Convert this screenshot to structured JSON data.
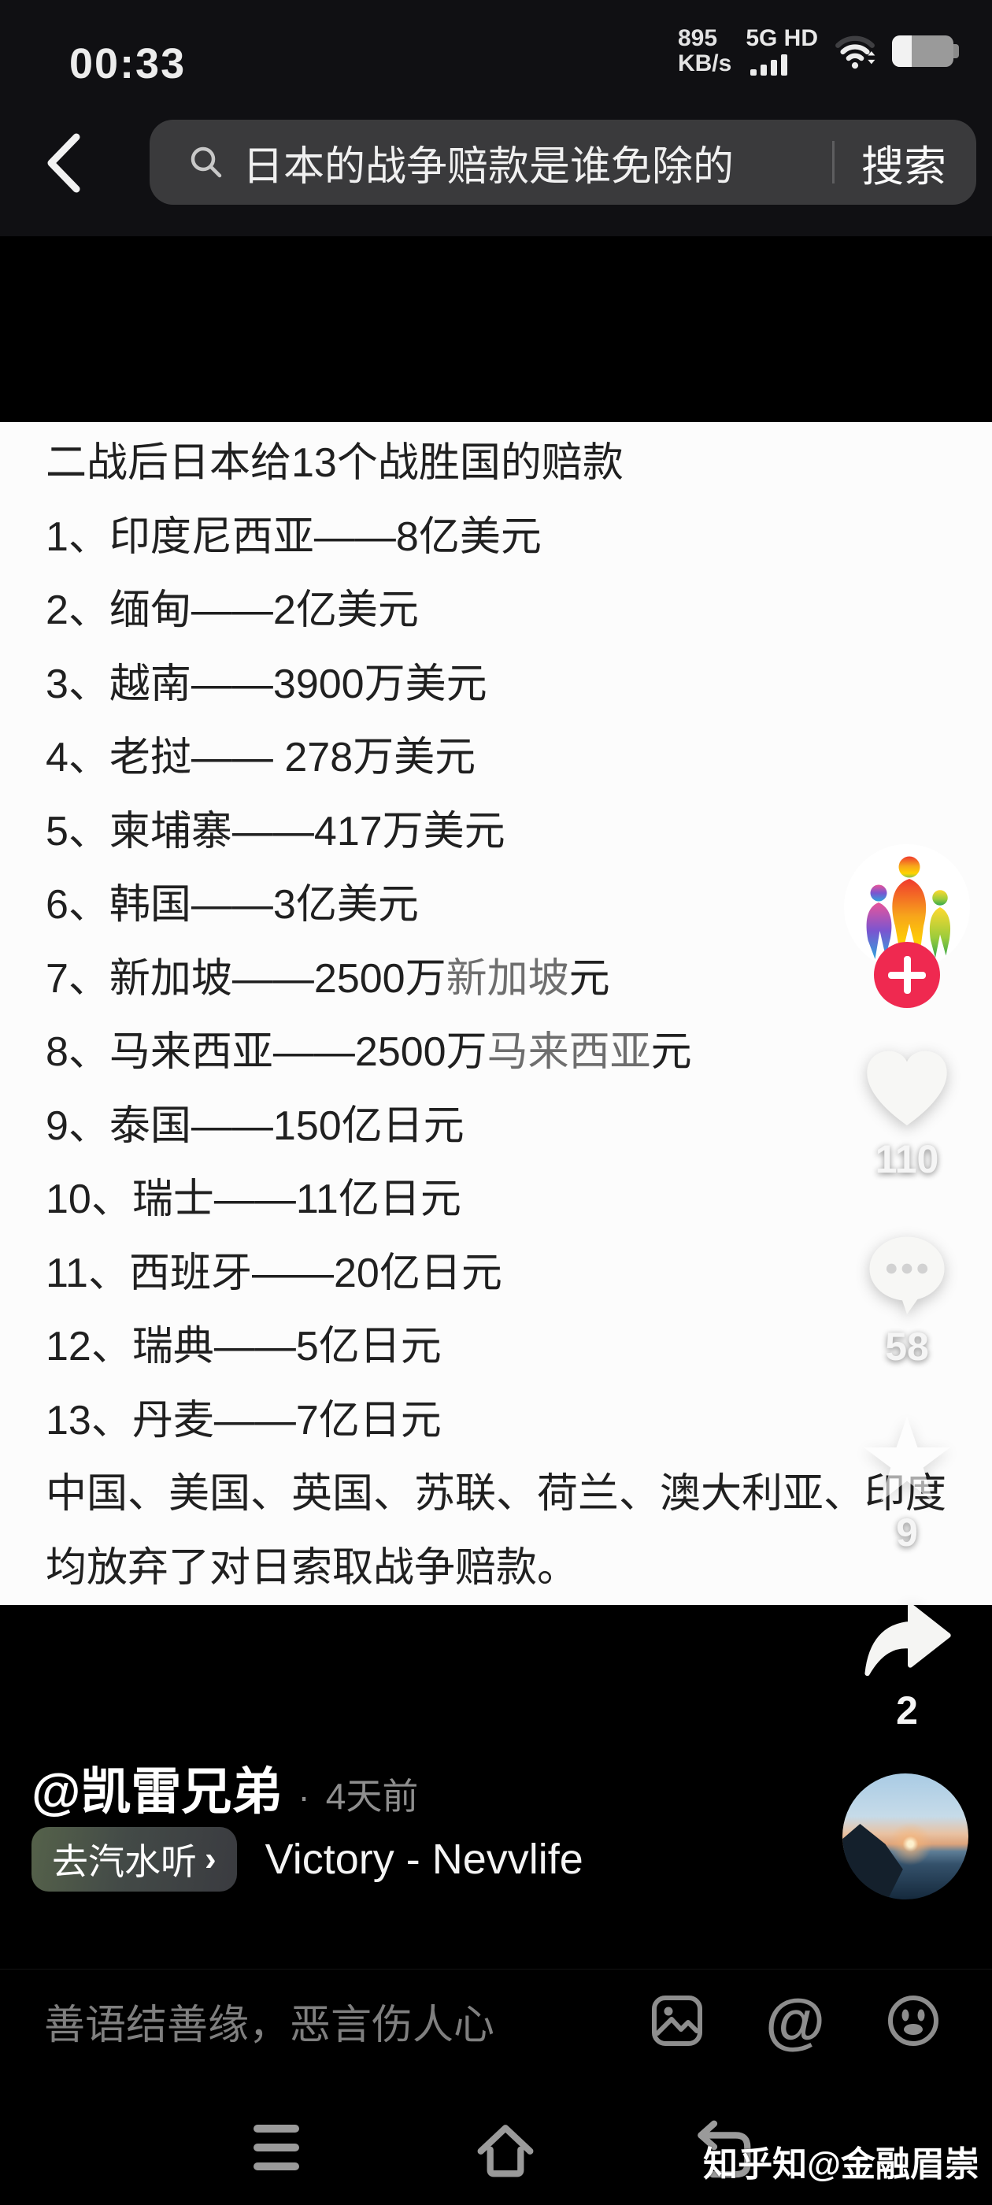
{
  "status": {
    "time": "00:33",
    "net_speed_value": "895",
    "net_speed_unit": "KB/s",
    "net_type": "5G HD",
    "battery_percent_visual": 32
  },
  "search": {
    "query": "日本的战争赔款是谁免除的",
    "button_label": "搜索"
  },
  "caption": {
    "lines": [
      {
        "parts": [
          {
            "t": "二战后日本给13个战胜国的赔款"
          }
        ]
      },
      {
        "parts": [
          {
            "t": "1、印度尼西亚——8亿美元"
          }
        ]
      },
      {
        "parts": [
          {
            "t": "2、缅甸——2亿美元"
          }
        ]
      },
      {
        "parts": [
          {
            "t": "3、越南——3900万美元"
          }
        ]
      },
      {
        "parts": [
          {
            "t": "4、老挝—— 278万美元"
          }
        ]
      },
      {
        "parts": [
          {
            "t": "5、柬埔寨——417万美元"
          }
        ]
      },
      {
        "parts": [
          {
            "t": "6、韩国——3亿美元"
          }
        ]
      },
      {
        "parts": [
          {
            "t": "7、新加坡——2500万"
          },
          {
            "t": "新加坡",
            "muted": true
          },
          {
            "t": "元"
          }
        ]
      },
      {
        "parts": [
          {
            "t": "8、马来西亚——2500万"
          },
          {
            "t": "马来西亚",
            "muted": true
          },
          {
            "t": "元"
          }
        ]
      },
      {
        "parts": [
          {
            "t": "9、泰国——150亿日元"
          }
        ]
      },
      {
        "parts": [
          {
            "t": "10、瑞士——11亿日元"
          }
        ]
      },
      {
        "parts": [
          {
            "t": "11、西班牙——20亿日元"
          }
        ]
      },
      {
        "parts": [
          {
            "t": "12、瑞典——5亿日元"
          }
        ]
      },
      {
        "parts": [
          {
            "t": "13、丹麦——7亿日元"
          }
        ]
      },
      {
        "parts": [
          {
            "t": "中国、美国、英国、苏联、荷兰、澳大利亚、印度"
          }
        ]
      },
      {
        "parts": [
          {
            "t": "均放弃了对日索取战争赔款。"
          }
        ]
      }
    ]
  },
  "actions": {
    "like_count": "110",
    "comment_count": "58",
    "favorite_count": "9",
    "share_count": "2"
  },
  "author": {
    "handle": "@凯雷兄弟",
    "separator": "·",
    "posted": "4天前"
  },
  "music": {
    "badge_label": "去汽水听",
    "badge_chevron": "›",
    "title": "Victory - Nevvlife"
  },
  "comment_bar": {
    "placeholder": "善语结善缘，恶言伤人心"
  },
  "watermark": {
    "text": "知乎知@金融眉崇"
  },
  "colors": {
    "accent_pink": "#ef2950",
    "panel_bg": "#fcfcfc",
    "caption_text": "#202020",
    "caption_muted": "#6e6e6e",
    "search_pill_bg": "#3a3a3c"
  }
}
